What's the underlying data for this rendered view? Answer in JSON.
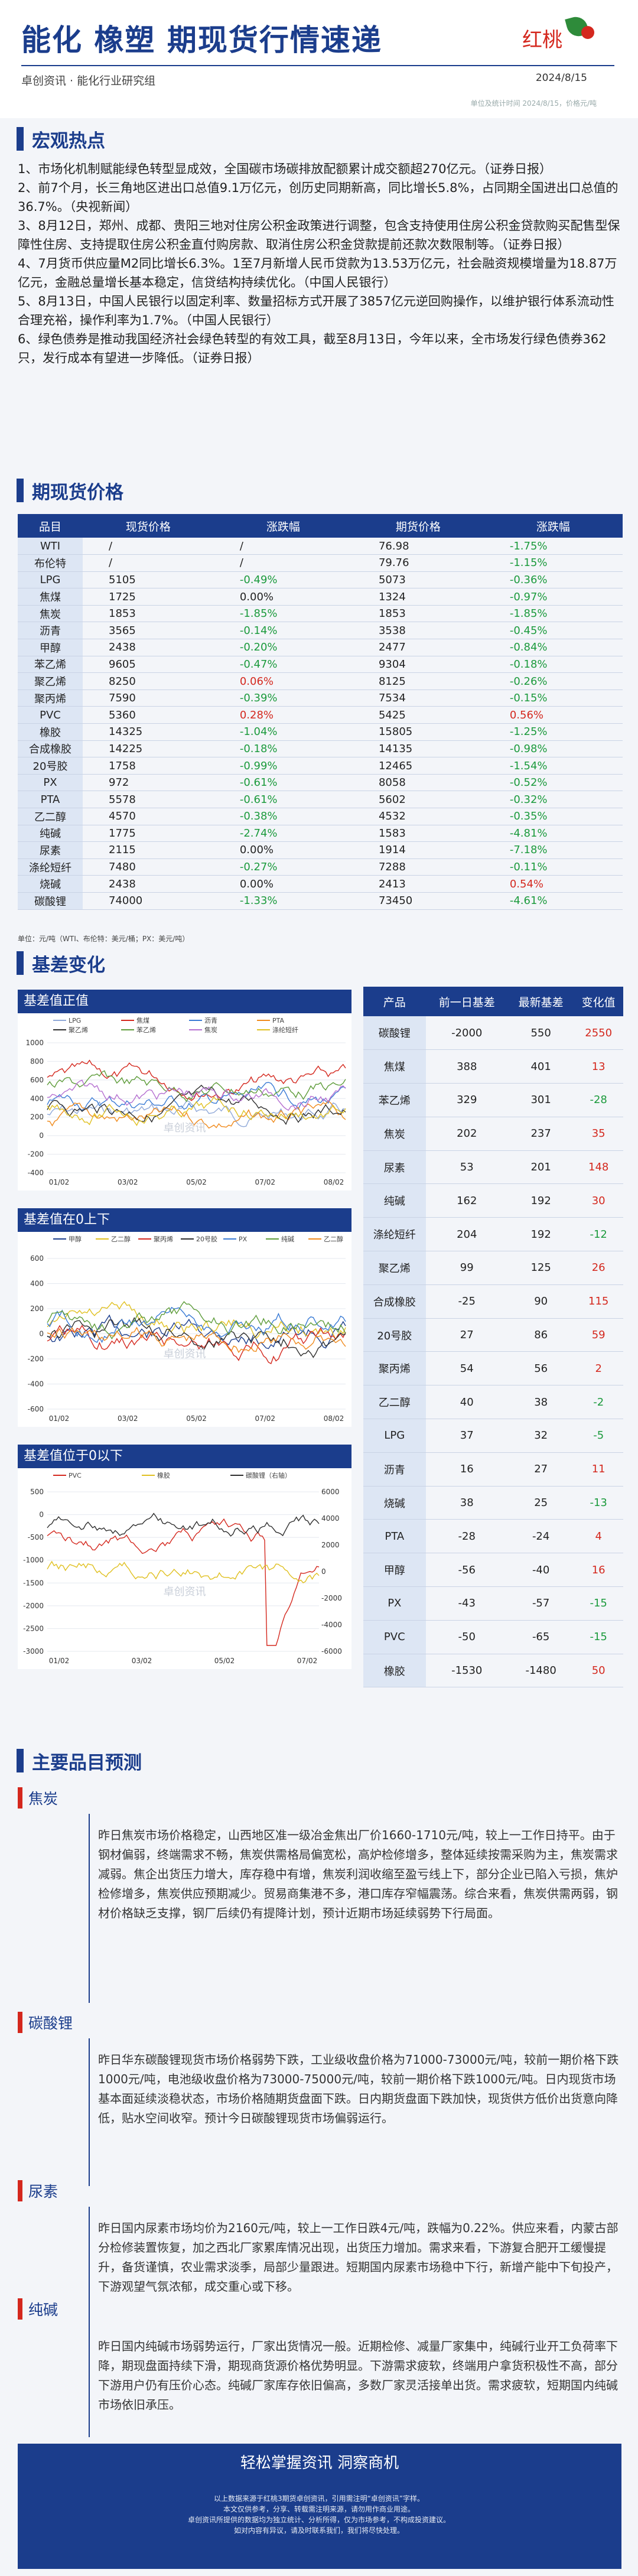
{
  "header": {
    "title": "能化 橡塑 期现货行情速递",
    "brand": "红桃",
    "subtitle": "卓创资讯 · 能化行业研究组",
    "date": "2024/8/15",
    "note": "单位及统计时间 2024/8/15，价格元/吨"
  },
  "hot": {
    "title": "宏观热点",
    "items": [
      "1、市场化机制赋能绿色转型显成效，全国碳市场碳排放配额累计成交额超270亿元。（证券日报）",
      "2、前7个月，长三角地区进出口总值9.1万亿元，创历史同期新高，同比增长5.8%，占同期全国进出口总值的36.7%。（央视新闻）",
      "3、8月12日，郑州、成都、贵阳三地对住房公积金政策进行调整，包含支持使用住房公积金贷款购买配售型保障性住房、支持提取住房公积金直付购房款、取消住房公积金贷款提前还款次数限制等。（证券日报）",
      "4、7月货币供应量M2同比增长6.3%。1至7月新增人民币贷款为13.53万亿元，社会融资规模增量为18.87万亿元，金融总量增长基本稳定，信贷结构持续优化。（中国人民银行）",
      "5、8月13日，中国人民银行以固定利率、数量招标方式开展了3857亿元逆回购操作，以维护银行体系流动性合理充裕，操作利率为1.7%。（中国人民银行）",
      "6、绿色债券是推动我国经济社会绿色转型的有效工具，截至8月13日，今年以来，全市场发行绿色债券362只，发行成本有望进一步降低。（证券日报）"
    ]
  },
  "prices": {
    "title": "期现货价格",
    "headers": [
      "品目",
      "现货价格",
      "涨跌幅",
      "期货价格",
      "涨跌幅"
    ],
    "rows": [
      [
        "WTI",
        "/",
        "/",
        "76.98",
        "-1.75%"
      ],
      [
        "布伦特",
        "/",
        "/",
        "79.76",
        "-1.15%"
      ],
      [
        "LPG",
        "5105",
        "-0.49%",
        "5073",
        "-0.36%"
      ],
      [
        "焦煤",
        "1725",
        "0.00%",
        "1324",
        "-0.97%"
      ],
      [
        "焦炭",
        "1853",
        "-1.85%",
        "1853",
        "-1.85%"
      ],
      [
        "沥青",
        "3565",
        "-0.14%",
        "3538",
        "-0.45%"
      ],
      [
        "甲醇",
        "2438",
        "-0.20%",
        "2477",
        "-0.84%"
      ],
      [
        "苯乙烯",
        "9605",
        "-0.47%",
        "9304",
        "-0.18%"
      ],
      [
        "聚乙烯",
        "8250",
        "0.06%",
        "8125",
        "-0.26%"
      ],
      [
        "聚丙烯",
        "7590",
        "-0.39%",
        "7534",
        "-0.15%"
      ],
      [
        "PVC",
        "5360",
        "0.28%",
        "5425",
        "0.56%"
      ],
      [
        "橡胶",
        "14325",
        "-1.04%",
        "15805",
        "-1.25%"
      ],
      [
        "合成橡胶",
        "14225",
        "-0.18%",
        "14135",
        "-0.98%"
      ],
      [
        "20号胶",
        "1758",
        "-0.99%",
        "12465",
        "-1.54%"
      ],
      [
        "PX",
        "972",
        "-0.61%",
        "8058",
        "-0.52%"
      ],
      [
        "PTA",
        "5578",
        "-0.61%",
        "5602",
        "-0.32%"
      ],
      [
        "乙二醇",
        "4570",
        "-0.38%",
        "4532",
        "-0.35%"
      ],
      [
        "纯碱",
        "1775",
        "-2.74%",
        "1583",
        "-4.81%"
      ],
      [
        "尿素",
        "2115",
        "0.00%",
        "1914",
        "-7.18%"
      ],
      [
        "涤纶短纤",
        "7480",
        "-0.27%",
        "7288",
        "-0.11%"
      ],
      [
        "烧碱",
        "2438",
        "0.00%",
        "2413",
        "0.54%"
      ],
      [
        "碳酸锂",
        "74000",
        "-1.33%",
        "73450",
        "-4.61%"
      ]
    ],
    "note": "单位：元/吨（WTI、布伦特：美元/桶；PX：美元/吨）"
  },
  "basis": {
    "title": "基差变化",
    "chart1": {
      "title": "基差值正值",
      "legend": [
        "LPG",
        "焦煤",
        "沥青",
        "PTA",
        "聚乙烯",
        "苯乙烯",
        "焦炭",
        "涤纶短纤"
      ],
      "xticks": [
        "01/02",
        "03/02",
        "05/02",
        "07/02",
        "08/02"
      ],
      "yticks": [
        "1000",
        "800",
        "600",
        "400",
        "200",
        "0",
        "-200",
        "-400"
      ]
    },
    "chart2": {
      "title": "基差值在0上下",
      "legend": [
        "甲醇",
        "乙二醇",
        "聚丙烯",
        "20号胶",
        "PX",
        "纯碱",
        "乙二醇"
      ],
      "xticks": [
        "01/02",
        "03/02",
        "05/02",
        "07/02",
        "08/02"
      ],
      "yticks": [
        "600",
        "400",
        "200",
        "0",
        "-200",
        "-400",
        "-600"
      ]
    },
    "chart3": {
      "title": "基差值位于0以下",
      "legend": [
        "PVC",
        "橡胶",
        "碳酸锂（右轴）"
      ],
      "xticks": [
        "01/02",
        "03/02",
        "05/02",
        "07/02"
      ],
      "yticks": [
        "500",
        "0",
        "-500",
        "-1000",
        "-1500",
        "-2000",
        "-2500",
        "-3000"
      ],
      "y2ticks": [
        "6000",
        "4000",
        "2000",
        "0",
        "-2000",
        "-4000",
        "-6000"
      ]
    },
    "watermark": "卓创资讯",
    "headers": [
      "产品",
      "前一日基差",
      "最新基差",
      "变化值"
    ],
    "rows": [
      [
        "碳酸锂",
        "-2000",
        "550",
        "2550",
        "up"
      ],
      [
        "焦煤",
        "388",
        "401",
        "13",
        "up"
      ],
      [
        "苯乙烯",
        "329",
        "301",
        "-28",
        "dn"
      ],
      [
        "焦炭",
        "202",
        "237",
        "35",
        "up"
      ],
      [
        "尿素",
        "53",
        "201",
        "148",
        "up"
      ],
      [
        "纯碱",
        "162",
        "192",
        "30",
        "up"
      ],
      [
        "涤纶短纤",
        "204",
        "192",
        "-12",
        "dn"
      ],
      [
        "聚乙烯",
        "99",
        "125",
        "26",
        "up"
      ],
      [
        "合成橡胶",
        "-25",
        "90",
        "115",
        "up"
      ],
      [
        "20号胶",
        "27",
        "86",
        "59",
        "up"
      ],
      [
        "聚丙烯",
        "54",
        "56",
        "2",
        "up"
      ],
      [
        "乙二醇",
        "40",
        "38",
        "-2",
        "dn"
      ],
      [
        "LPG",
        "37",
        "32",
        "-5",
        "dn"
      ],
      [
        "沥青",
        "16",
        "27",
        "11",
        "up"
      ],
      [
        "烧碱",
        "38",
        "25",
        "-13",
        "dn"
      ],
      [
        "PTA",
        "-28",
        "-24",
        "4",
        "up"
      ],
      [
        "甲醇",
        "-56",
        "-40",
        "16",
        "up"
      ],
      [
        "PX",
        "-43",
        "-57",
        "-15",
        "dn"
      ],
      [
        "PVC",
        "-50",
        "-65",
        "-15",
        "dn"
      ],
      [
        "橡胶",
        "-1530",
        "-1480",
        "50",
        "up"
      ]
    ]
  },
  "forecast": {
    "title": "主要品目预测",
    "items": [
      {
        "name": "焦炭",
        "text": "昨日焦炭市场价格稳定，山西地区准一级冶金焦出厂价1660-1710元/吨，较上一工作日持平。由于钢材偏弱，终端需求不畅，焦炭供需格局偏宽松，高炉检修增多，整体延续按需采购为主，焦炭需求减弱。焦企出货压力增大，库存稳中有增，焦炭利润收缩至盈亏线上下，部分企业已陷入亏损，焦炉检修增多，焦炭供应预期减少。贸易商集港不多，港口库存窄幅震荡。综合来看，焦炭供需两弱，钢材价格缺乏支撑，钢厂后续仍有提降计划，预计近期市场延续弱势下行局面。"
      },
      {
        "name": "碳酸锂",
        "text": "昨日华东碳酸锂现货市场价格弱势下跌，工业级收盘价格为71000-73000元/吨，较前一期价格下跌1000元/吨，电池级收盘价格为73000-75000元/吨，较前一期价格下跌1000元/吨。日内现货市场基本面延续淡稳状态，市场价格随期货盘面下跌。日内期货盘面下跌加快，现货供方低价出货意向降低，贴水空间收窄。预计今日碳酸锂现货市场偏弱运行。"
      },
      {
        "name": "尿素",
        "text": "昨日国内尿素市场均价为2160元/吨，较上一工作日跌4元/吨，跌幅为0.22%。供应来看，内蒙古部分检修装置恢复，加之西北厂家累库情况出现，出货压力增加。需求来看，下游复合肥开工缓慢提升，备货谨慎，农业需求淡季，局部少量跟进。短期国内尿素市场稳中下行，新增产能中下旬投产，下游观望气氛浓郁，成交重心或下移。"
      },
      {
        "name": "纯碱",
        "text": "昨日国内纯碱市场弱势运行，厂家出货情况一般。近期检修、减量厂家集中，纯碱行业开工负荷率下降，期现盘面持续下滑，期现商货源价格优势明显。下游需求疲软，终端用户拿货积极性不高，部分下游用户仍有压价心态。纯碱厂家库存依旧偏高，多数厂家灵活接单出货。需求疲软，短期国内纯碱市场依旧承压。"
      }
    ]
  },
  "footer": {
    "slogan": "轻松掌握资讯  洞察商机",
    "disclaimer": [
      "以上数据来源于红桃3期货卓创资讯，引用需注明“卓创资讯”字样。",
      "本文仅供参考，分享、转载需注明来源，请勿用作商业用途。",
      "卓创资讯所提供的数据均为独立统计、分析所得，仅为市场参考，不构成投资建议。",
      "如对内容有异议，请及时联系我们，我们将尽快处理。"
    ]
  },
  "colors": {
    "primary": "#1b3d8c",
    "up": "#d4281e",
    "down": "#1b9a3c"
  }
}
